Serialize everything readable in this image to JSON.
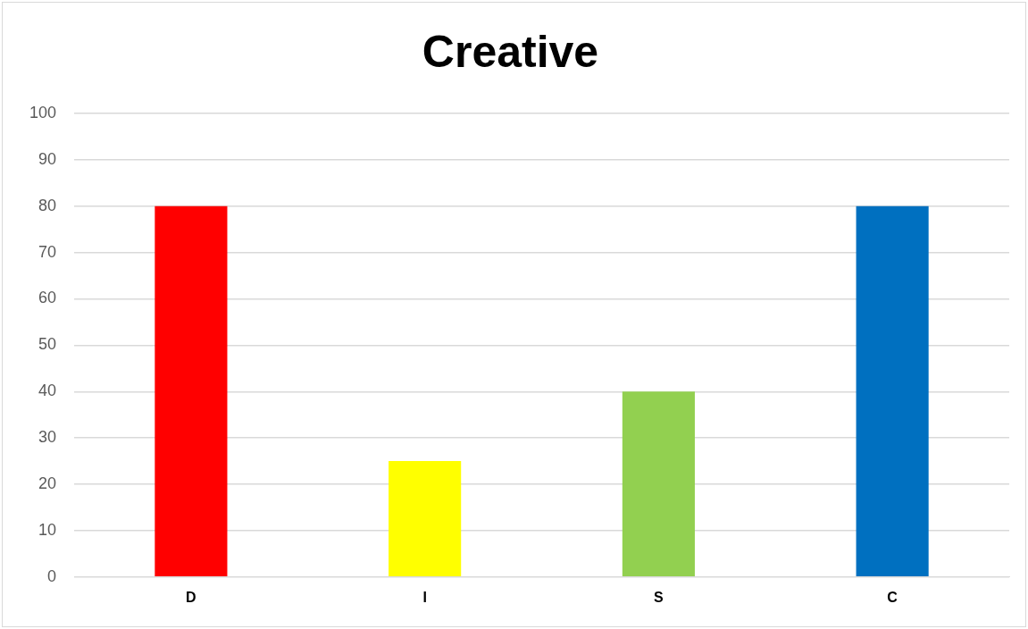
{
  "chart_data": {
    "type": "bar",
    "title": "Creative",
    "categories": [
      "D",
      "I",
      "S",
      "C"
    ],
    "values": [
      80,
      25,
      40,
      80
    ],
    "colors": [
      "#ff0000",
      "#ffff00",
      "#92d050",
      "#0070c0"
    ],
    "ylim": [
      0,
      100
    ],
    "yticks": [
      0,
      10,
      20,
      30,
      40,
      50,
      60,
      70,
      80,
      90,
      100
    ],
    "grid": "y",
    "legend": false
  }
}
